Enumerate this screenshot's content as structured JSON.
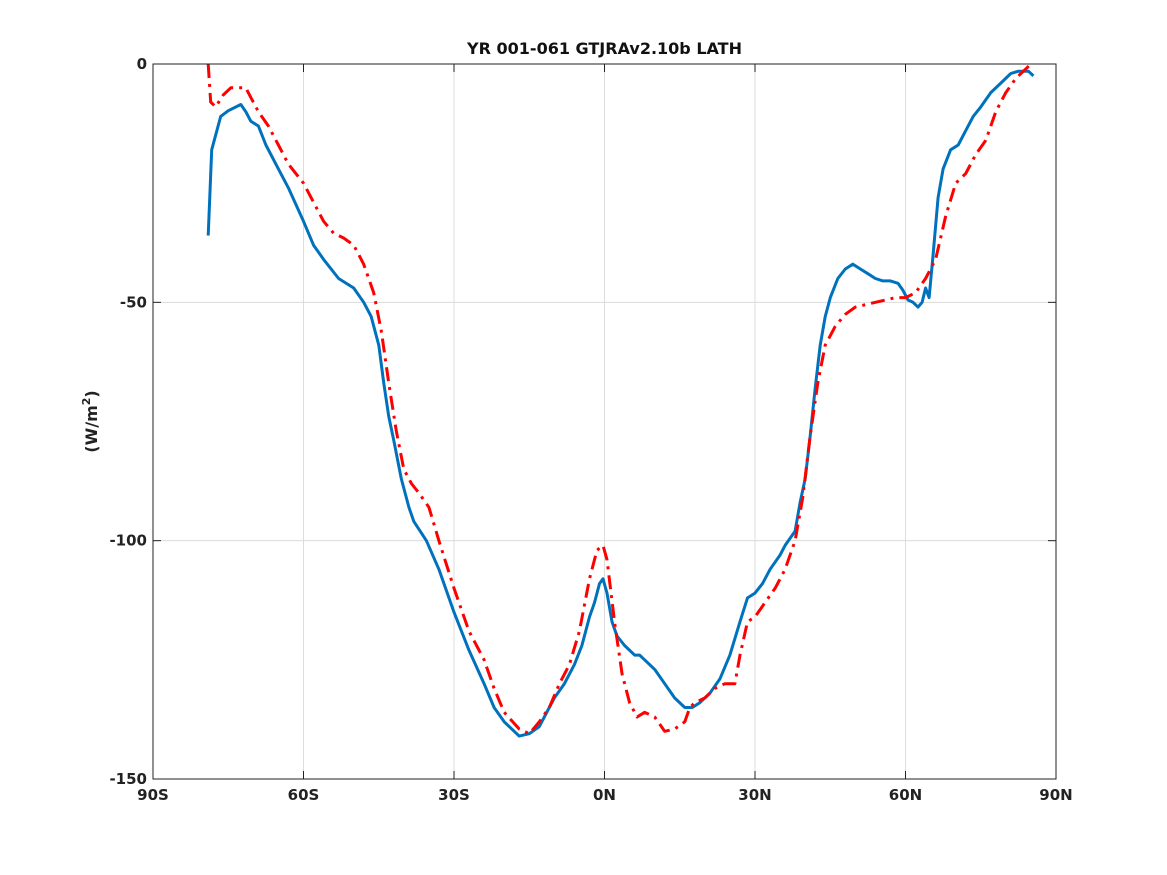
{
  "chart_data": {
    "type": "line",
    "title": "YR 001-061 GTJRAv2.10b LATH",
    "xlabel": "",
    "ylabel": "(W/m",
    "ylabel_sup": "2",
    "ylabel_close": ")",
    "xlim": [
      -90,
      90
    ],
    "ylim": [
      -150,
      0
    ],
    "xticks": [
      -90,
      -60,
      -30,
      0,
      30,
      60,
      90
    ],
    "xtick_labels": [
      "90S",
      "60S",
      "30S",
      "0N",
      "30N",
      "60N",
      "90N"
    ],
    "yticks": [
      0,
      -50,
      -100,
      -150
    ],
    "ytick_labels": [
      "0",
      "-50",
      "-100",
      "-150"
    ],
    "grid": true,
    "series": [
      {
        "color": "#0072BD",
        "dash": "solid",
        "x": [
          -79,
          -78.3,
          -76.5,
          -75,
          -72.5,
          -71.5,
          -70.5,
          -69,
          -67.5,
          -65,
          -63,
          -60,
          -58,
          -56,
          -53,
          -50,
          -48,
          -46.5,
          -45,
          -44,
          -43,
          -42,
          -40.5,
          -39,
          -38,
          -35.5,
          -33,
          -30,
          -27,
          -24,
          -22,
          -20,
          -17,
          -15,
          -13,
          -12,
          -10,
          -8,
          -6,
          -4.5,
          -3,
          -2,
          -1,
          -0.3,
          0.5,
          1.5,
          2.5,
          4,
          6,
          7,
          8,
          10,
          12,
          14,
          16,
          17.5,
          19,
          21,
          23,
          25,
          27,
          28.5,
          30,
          31.5,
          33,
          35,
          36,
          38,
          39,
          40,
          41,
          42,
          43,
          44,
          45,
          46.5,
          48,
          49.5,
          51,
          52.5,
          54,
          55.5,
          57,
          58.5,
          59.5,
          60.5,
          61.5,
          62.5,
          63.3,
          64,
          64.7,
          65.5,
          66.5,
          67.5,
          69,
          70.5,
          72,
          73.5,
          75,
          77,
          79,
          81,
          82.5,
          83.5,
          84.5,
          85.5
        ],
        "y": [
          -36,
          -18,
          -11,
          -9.8,
          -8.5,
          -10,
          -12,
          -13,
          -17,
          -22,
          -26,
          -33,
          -38,
          -41,
          -45,
          -47,
          -50,
          -53,
          -59,
          -67,
          -74,
          -79,
          -87,
          -93,
          -96,
          -100,
          -106,
          -115,
          -123,
          -130,
          -135,
          -138,
          -141,
          -140.5,
          -139,
          -137,
          -133,
          -130,
          -126,
          -122,
          -116,
          -113,
          -109,
          -108,
          -111,
          -117,
          -120,
          -122,
          -124,
          -124,
          -125,
          -127,
          -130,
          -133,
          -135,
          -135,
          -134,
          -132,
          -129,
          -124,
          -117,
          -112,
          -111,
          -109,
          -106,
          -103,
          -101,
          -98,
          -92,
          -87,
          -78,
          -68,
          -59,
          -53,
          -49,
          -45,
          -43,
          -42,
          -43,
          -44,
          -45,
          -45.5,
          -45.5,
          -46,
          -47.5,
          -49.5,
          -50,
          -51,
          -50,
          -47,
          -49,
          -40,
          -28,
          -22,
          -18,
          -17,
          -14,
          -11,
          -9,
          -6,
          -4,
          -2,
          -1.5,
          -1.5,
          -1.5,
          -2.5
        ]
      },
      {
        "color": "#FF0000",
        "dash": "dashdot",
        "x": [
          -79,
          -78.5,
          -77.5,
          -76,
          -74.5,
          -73,
          -71.5,
          -70.5,
          -69,
          -67,
          -65,
          -63,
          -60,
          -58,
          -56,
          -54,
          -52,
          -50,
          -48,
          -46,
          -44.5,
          -43,
          -41.5,
          -40,
          -38.5,
          -37,
          -35,
          -33,
          -30,
          -27,
          -24,
          -22,
          -20,
          -17,
          -15,
          -13,
          -11,
          -9,
          -7,
          -5,
          -3,
          -1.5,
          -0.3,
          0.5,
          2,
          3.5,
          5,
          6.5,
          8,
          10,
          12,
          14,
          16,
          17,
          18,
          20,
          22,
          24,
          26,
          27,
          28.5,
          30,
          32,
          34,
          36,
          38,
          39.5,
          41,
          42.5,
          44,
          46,
          48,
          50,
          52,
          54,
          56,
          58,
          60,
          62,
          64,
          66,
          68,
          70,
          72,
          74,
          76,
          78,
          80,
          82,
          84,
          85
        ],
        "y": [
          0,
          -8,
          -9,
          -6.5,
          -5,
          -5,
          -5,
          -7,
          -10,
          -13,
          -17,
          -21,
          -25,
          -29,
          -33,
          -35.5,
          -36.5,
          -38,
          -42,
          -48,
          -56,
          -67,
          -77,
          -85,
          -88,
          -90,
          -93,
          -100,
          -110,
          -119,
          -125,
          -131,
          -136,
          -139.5,
          -140.5,
          -138,
          -135,
          -130,
          -126,
          -119,
          -108,
          -102,
          -101,
          -104,
          -117,
          -128,
          -134,
          -137,
          -136,
          -137,
          -140,
          -139.5,
          -138,
          -135,
          -134,
          -133,
          -131,
          -130,
          -130,
          -124,
          -117,
          -116,
          -113,
          -110,
          -106,
          -100,
          -91,
          -78,
          -67,
          -59,
          -55,
          -52.5,
          -51,
          -50.5,
          -50,
          -49.5,
          -49,
          -49,
          -48,
          -45,
          -41,
          -32,
          -25,
          -23,
          -19,
          -16,
          -10,
          -6,
          -3,
          -1,
          0
        ]
      }
    ]
  }
}
